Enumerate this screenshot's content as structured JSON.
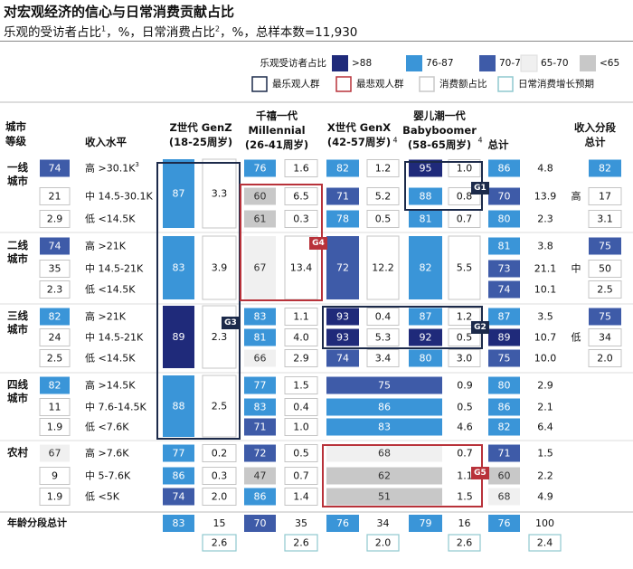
{
  "title": "对宏观经济的信心与日常消费贡献占比",
  "subtitle": {
    "prefix": "乐观的受访者占比",
    "sup1": "1",
    "mid": "，%，日常消费占比",
    "sup2": "2",
    "suffix": "，%，总样本数=11,930"
  },
  "legend": {
    "label": "乐观受访者占比",
    "bins": [
      {
        "label": ">88",
        "color": "#1f2a7a"
      },
      {
        "label": "76-87",
        "color": "#3a95d8"
      },
      {
        "label": "70-76",
        "color": "#3e5ba8"
      },
      {
        "label": "65-70",
        "color": "#f0f0f0"
      },
      {
        "label": "<65",
        "color": "#c8c8c8"
      }
    ],
    "keys": [
      {
        "label": "最乐观人群",
        "color": "#1c2a4a"
      },
      {
        "label": "最悲观人群",
        "color": "#b8323a"
      },
      {
        "label": "消费额占比",
        "color": "#c8c8c8"
      },
      {
        "label": "日常消费增长预期",
        "color": "#8fc9cf"
      }
    ]
  },
  "headers": {
    "city_tier": "城市\n等级",
    "income": "收入水平",
    "genz": "Z世代 GenZ\n(18-25周岁)",
    "millennial": "千禧一代\nMillennial\n(26-41周岁)",
    "genx": "X世代 GenX\n(42-57周岁)",
    "genx_sup": "4",
    "boomer": "婴儿潮一代\nBabyboomer\n(58-65周岁)",
    "boomer_sup": "4",
    "total": "总计",
    "income_total": "收入分段\n总计"
  },
  "colors": {
    "c88": "#1f2a7a",
    "c76": "#3a95d8",
    "c70": "#3e5ba8",
    "c65": "#f0f0f0",
    "clow": "#c8c8c8",
    "optimist": "#1c2a4a",
    "pessimist": "#b8323a"
  },
  "chart_data": {
    "type": "table",
    "title": "对宏观经济的信心与日常消费贡献占比",
    "row_label": "乐观受访者占比 / 日常消费占比",
    "tiers": [
      {
        "name": "一线\n城市",
        "stat": [
          "74",
          "21",
          "2.9"
        ],
        "incomes": [
          "高 >30.1K",
          "中 14.5-30.1K",
          "低 <14.5K"
        ],
        "income_sup": "3",
        "genz": {
          "opt": 87,
          "share": "3.3",
          "merged": true
        },
        "mil": {
          "opt": [
            76,
            60,
            61
          ],
          "share": [
            "1.6",
            "6.5",
            "0.3"
          ]
        },
        "genx": {
          "opt": [
            82,
            71,
            78
          ],
          "share": [
            "1.2",
            "5.2",
            "0.5"
          ]
        },
        "boomer": {
          "opt": [
            95,
            88,
            81
          ],
          "share": [
            "1.0",
            "0.8",
            "0.7"
          ]
        },
        "total": {
          "opt": [
            86,
            70,
            80
          ],
          "share": [
            "4.8",
            "13.9",
            "2.3"
          ]
        },
        "income_total": {
          "label": "高",
          "values": [
            "82",
            "17",
            "3.1"
          ]
        }
      },
      {
        "name": "二线\n城市",
        "stat": [
          "74",
          "35",
          "2.3"
        ],
        "incomes": [
          "高 >21K",
          "中 14.5-21K",
          "低 <14.5K"
        ],
        "genz": {
          "opt": 83,
          "share": "3.9",
          "merged": true
        },
        "mil": {
          "opt": 67,
          "share": "13.4",
          "merged": true
        },
        "genx": {
          "opt": 72,
          "share": "12.2",
          "merged": true
        },
        "boomer": {
          "opt": 82,
          "share": "5.5",
          "merged": true
        },
        "total": {
          "opt": [
            81,
            73,
            74
          ],
          "share": [
            "3.8",
            "21.1",
            "10.1"
          ]
        },
        "income_total": {
          "label": "中",
          "values": [
            "75",
            "50",
            "2.5"
          ]
        }
      },
      {
        "name": "三线\n城市",
        "stat": [
          "82",
          "24",
          "2.5"
        ],
        "incomes": [
          "高 >21K",
          "中 14.5-21K",
          "低 <14.5K"
        ],
        "genz": {
          "opt": 89,
          "share": "2.3",
          "merged": true
        },
        "mil": {
          "opt": [
            83,
            81,
            66
          ],
          "share": [
            "1.1",
            "4.0",
            "2.9"
          ]
        },
        "genx": {
          "opt": [
            93,
            93,
            74
          ],
          "share": [
            "0.4",
            "5.3",
            "3.4"
          ]
        },
        "boomer": {
          "opt": [
            87,
            92,
            80
          ],
          "share": [
            "1.2",
            "0.5",
            "3.0"
          ]
        },
        "total": {
          "opt": [
            87,
            89,
            75
          ],
          "share": [
            "3.5",
            "10.7",
            "10.0"
          ]
        },
        "income_total": {
          "label": "低",
          "values": [
            "75",
            "34",
            "2.0"
          ]
        }
      },
      {
        "name": "四线\n城市",
        "stat": [
          "82",
          "11",
          "1.9"
        ],
        "incomes": [
          "高 >14.5K",
          "中 7.6-14.5K",
          "低 <7.6K"
        ],
        "genz": {
          "opt": 88,
          "share": "2.5",
          "merged": true
        },
        "mil": {
          "opt": [
            77,
            83,
            71
          ],
          "share": [
            "1.5",
            "0.4",
            "1.0"
          ]
        },
        "genx_boomer_merged": {
          "opt": [
            75,
            86,
            83
          ],
          "share": [
            "0.9",
            "0.5",
            "4.6"
          ]
        },
        "total": {
          "opt": [
            80,
            86,
            82
          ],
          "share": [
            "2.9",
            "2.1",
            "6.4"
          ]
        }
      },
      {
        "name": "农村",
        "stat": [
          "67",
          "9",
          "1.9"
        ],
        "incomes": [
          "高 >7.6K",
          "中 5-7.6K",
          "低 <5K"
        ],
        "genz": {
          "opt": [
            77,
            86,
            74
          ],
          "share": [
            "0.2",
            "0.3",
            "2.0"
          ]
        },
        "mil": {
          "opt": [
            72,
            47,
            86
          ],
          "share": [
            "0.5",
            "0.7",
            "1.4"
          ]
        },
        "genx_boomer_merged": {
          "opt": [
            68,
            62,
            51
          ],
          "share": [
            "0.7",
            "1.1",
            "1.5"
          ]
        },
        "total": {
          "opt": [
            71,
            60,
            68
          ],
          "share": [
            "1.5",
            "2.2",
            "4.9"
          ]
        }
      }
    ],
    "age_totals": {
      "label": "年龄分段总计",
      "genz": {
        "opt": 83,
        "share": "15",
        "growth": "2.6"
      },
      "mil": {
        "opt": 70,
        "share": "35",
        "growth": "2.6"
      },
      "genx": {
        "opt": 76,
        "share": "34",
        "growth": "2.0"
      },
      "boomer": {
        "opt": 79,
        "share": "16",
        "growth": "2.6"
      },
      "total": {
        "opt": 76,
        "share": "100",
        "growth": "2.4"
      }
    },
    "callouts": [
      "G1",
      "G2",
      "G3",
      "G4",
      "G5"
    ]
  }
}
